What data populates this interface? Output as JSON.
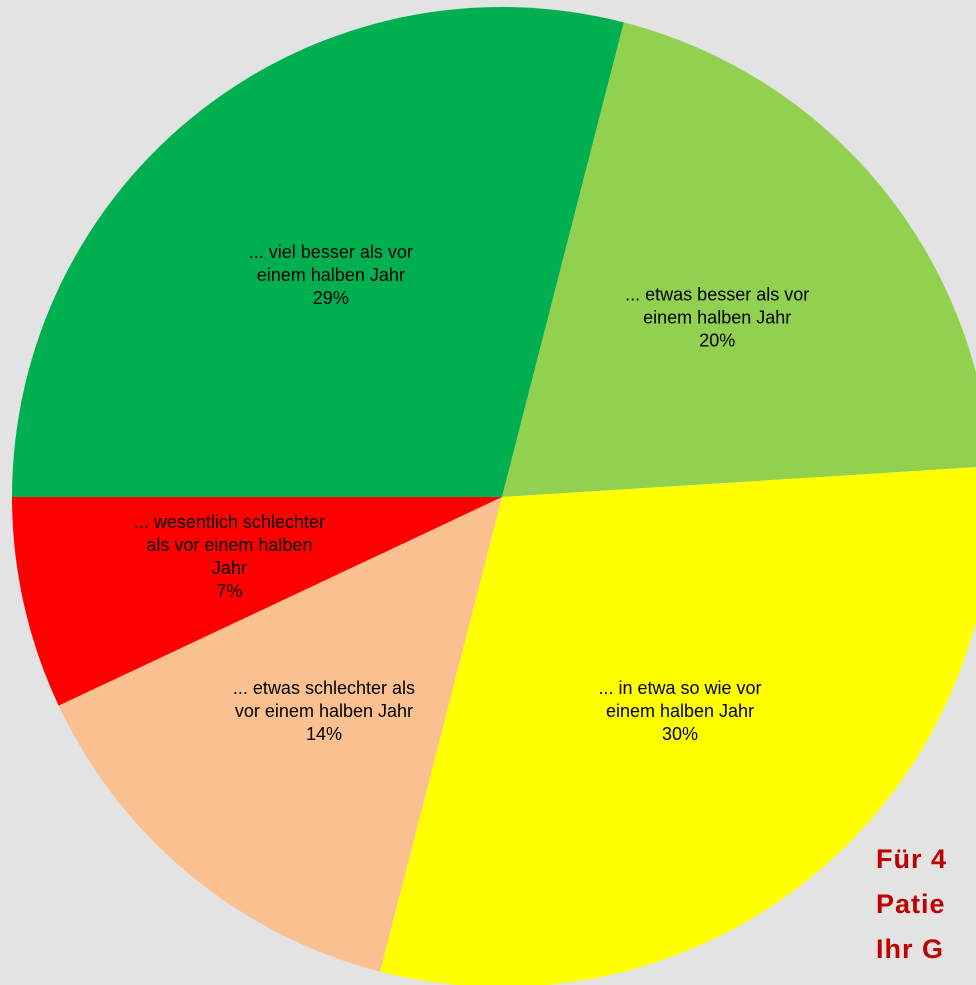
{
  "chart_data": {
    "type": "pie",
    "categories": [
      "... viel besser als vor\neinem halben Jahr",
      "... etwas besser als vor\neinem halben Jahr",
      "... in etwa so wie vor\neinem halben Jahr",
      "... etwas schlechter als\nvor einem halben Jahr",
      "... wesentlich schlechter\nals vor einem halben\nJahr"
    ],
    "values": [
      29,
      20,
      30,
      14,
      7
    ],
    "value_labels": [
      "29%",
      "20%",
      "30%",
      "14%",
      "7%"
    ],
    "colors": [
      "#00b050",
      "#92d050",
      "#ffff00",
      "#fac090",
      "#ff0000"
    ],
    "annotation": [
      "Für 4",
      "Patie",
      "Ihr G"
    ]
  }
}
